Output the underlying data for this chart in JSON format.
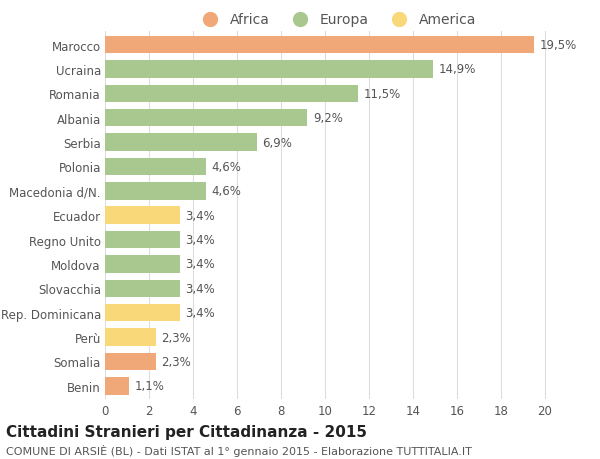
{
  "categories": [
    "Marocco",
    "Ucraina",
    "Romania",
    "Albania",
    "Serbia",
    "Polonia",
    "Macedonia d/N.",
    "Ecuador",
    "Regno Unito",
    "Moldova",
    "Slovacchia",
    "Rep. Dominicana",
    "Perù",
    "Somalia",
    "Benin"
  ],
  "values": [
    19.5,
    14.9,
    11.5,
    9.2,
    6.9,
    4.6,
    4.6,
    3.4,
    3.4,
    3.4,
    3.4,
    3.4,
    2.3,
    2.3,
    1.1
  ],
  "labels": [
    "19,5%",
    "14,9%",
    "11,5%",
    "9,2%",
    "6,9%",
    "4,6%",
    "4,6%",
    "3,4%",
    "3,4%",
    "3,4%",
    "3,4%",
    "3,4%",
    "2,3%",
    "2,3%",
    "1,1%"
  ],
  "colors": [
    "#f0a878",
    "#a8c890",
    "#a8c890",
    "#a8c890",
    "#a8c890",
    "#a8c890",
    "#a8c890",
    "#f8d878",
    "#a8c890",
    "#a8c890",
    "#a8c890",
    "#f8d878",
    "#f8d878",
    "#f0a878",
    "#f0a878"
  ],
  "legend_labels": [
    "Africa",
    "Europa",
    "America"
  ],
  "legend_colors": [
    "#f0a878",
    "#a8c890",
    "#f8d878"
  ],
  "title": "Cittadini Stranieri per Cittadinanza - 2015",
  "subtitle": "COMUNE DI ARSIÈ (BL) - Dati ISTAT al 1° gennaio 2015 - Elaborazione TUTTITALIA.IT",
  "xlim": [
    0,
    21
  ],
  "xticks": [
    0,
    2,
    4,
    6,
    8,
    10,
    12,
    14,
    16,
    18,
    20
  ],
  "background_color": "#ffffff",
  "grid_color": "#dddddd",
  "bar_height": 0.72,
  "label_fontsize": 8.5,
  "tick_fontsize": 8.5,
  "title_fontsize": 11,
  "subtitle_fontsize": 8,
  "legend_fontsize": 10
}
